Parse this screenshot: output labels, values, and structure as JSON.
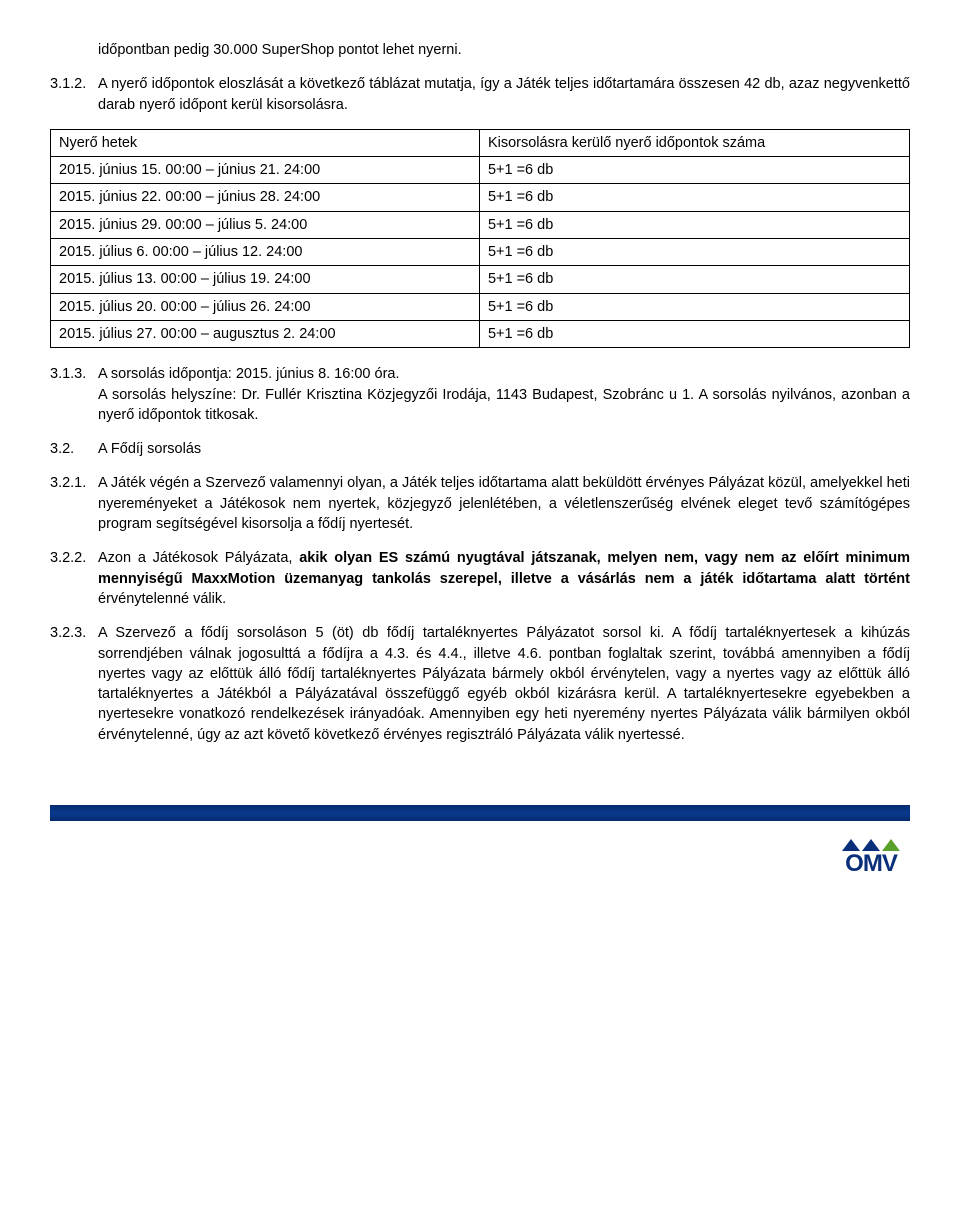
{
  "intro": "időpontban pedig 30.000 SuperShop pontot lehet nyerni.",
  "p312_num": "3.1.2.",
  "p312_text": "A nyerő időpontok eloszlását a következő táblázat mutatja, így a Játék teljes időtartamára összesen 42 db, azaz negyvenkettő darab nyerő időpont kerül kisorsolásra.",
  "table": {
    "headers": [
      "Nyerő hetek",
      "Kisorsolásra kerülő nyerő időpontok száma"
    ],
    "rows": [
      [
        "2015. június 15. 00:00 – június 21. 24:00",
        "5+1 =6 db"
      ],
      [
        "2015. június 22. 00:00 – június 28. 24:00",
        "5+1 =6 db"
      ],
      [
        "2015. június 29. 00:00 – július 5. 24:00",
        "5+1 =6 db"
      ],
      [
        "2015. július 6. 00:00 – július 12. 24:00",
        "5+1 =6 db"
      ],
      [
        "2015. július 13. 00:00 – július 19. 24:00",
        "5+1 =6 db"
      ],
      [
        "2015. július 20. 00:00 – július 26. 24:00",
        "5+1 =6 db"
      ],
      [
        "2015. július 27. 00:00 – augusztus 2. 24:00",
        "5+1 =6 db"
      ]
    ]
  },
  "p313_num": "3.1.3.",
  "p313_text": "A sorsolás időpontja: 2015. június 8. 16:00 óra.",
  "p313_text2": "A sorsolás helyszíne: Dr. Fullér Krisztina Közjegyzői Irodája, 1143 Budapest, Szobránc u 1. A sorsolás nyilvános, azonban a nyerő időpontok titkosak.",
  "p32_num": "3.2.",
  "p32_text": "A Fődíj sorsolás",
  "p321_num": "3.2.1.",
  "p321_text": "A Játék végén a Szervező valamennyi olyan, a Játék teljes időtartama alatt beküldött érvényes Pályázat közül, amelyekkel heti nyereményeket a Játékosok nem nyertek, közjegyző jelenlétében, a véletlenszerűség elvének eleget tevő számítógépes program segítségével kisorsolja a fődíj nyertesét.",
  "p322_num": "3.2.2.",
  "p322_bold": "akik olyan ES számú nyugtával játszanak, melyen nem, vagy nem az előírt minimum mennyiségű MaxxMotion üzemanyag tankolás szerepel, illetve a vásárlás nem a játék időtartama alatt történt",
  "p322_lead": "Azon a Játékosok Pályázata, ",
  "p322_trail": " érvénytelenné válik.",
  "p323_num": "3.2.3.",
  "p323_text": "A Szervező a fődíj sorsoláson 5 (öt) db fődíj tartaléknyertes Pályázatot sorsol ki. A fődíj tartaléknyertesek a kihúzás sorrendjében válnak jogosulttá a fődíjra a 4.3. és 4.4., illetve 4.6. pontban foglaltak szerint, továbbá amennyiben a fődíj nyertes vagy az előttük álló fődíj tartaléknyertes Pályázata bármely okból érvénytelen, vagy a nyertes vagy az előttük álló tartaléknyertes a Játékból a Pályázatával összefüggő egyéb okból kizárásra kerül. A tartaléknyertesekre egyebekben a nyertesekre vonatkozó rendelkezések irányadóak. Amennyiben egy heti nyeremény nyertes Pályázata válik bármilyen okból érvénytelenné, úgy az azt követő következő érvényes regisztráló Pályázata válik nyertessé.",
  "logo_text": "OMV"
}
